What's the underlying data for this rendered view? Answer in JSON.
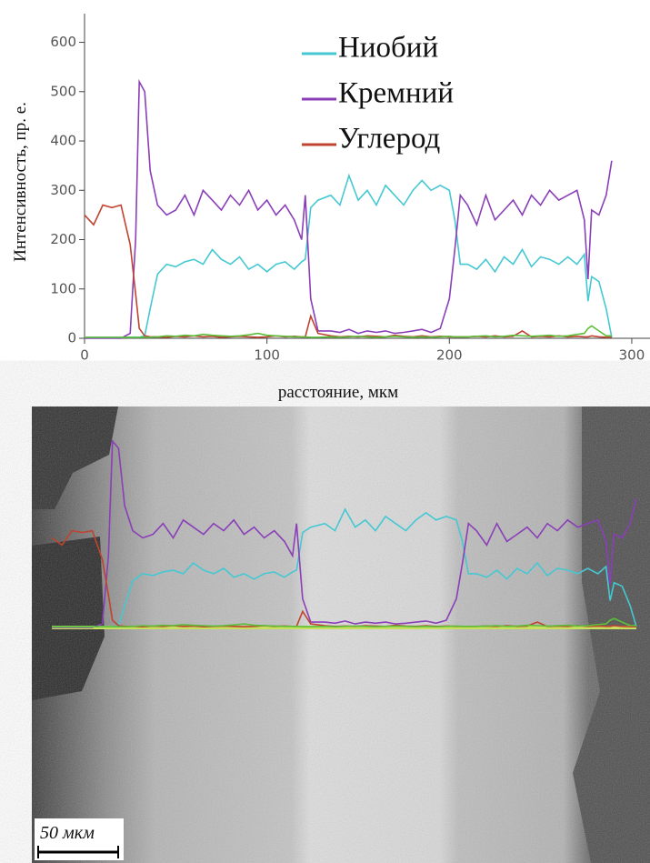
{
  "chart_data": {
    "type": "line",
    "x_label": "расстояние, мкм",
    "y_label": "Интенсивность, пр. е.",
    "xlim": [
      0,
      310
    ],
    "xticks": [
      0,
      100,
      200,
      300
    ],
    "ylim": [
      0,
      660
    ],
    "yticks": [
      0,
      100,
      200,
      300,
      400,
      500,
      600
    ],
    "legend": "upper center",
    "x": [
      0,
      5,
      10,
      15,
      20,
      25,
      28,
      30,
      33,
      36,
      40,
      45,
      50,
      55,
      60,
      65,
      70,
      75,
      80,
      85,
      90,
      95,
      100,
      105,
      110,
      115,
      119,
      121,
      124,
      128,
      135,
      140,
      145,
      150,
      155,
      160,
      165,
      170,
      175,
      180,
      185,
      190,
      195,
      200,
      203,
      206,
      210,
      215,
      220,
      225,
      230,
      235,
      240,
      245,
      250,
      255,
      260,
      265,
      270,
      274,
      276,
      278,
      282,
      286,
      289
    ],
    "series": [
      {
        "name": "Ниобий",
        "color": "#45c8d2",
        "values": [
          2,
          2,
          2,
          2,
          2,
          2,
          2,
          2,
          5,
          60,
          130,
          150,
          145,
          155,
          160,
          150,
          180,
          160,
          150,
          165,
          140,
          150,
          135,
          150,
          155,
          140,
          155,
          160,
          265,
          280,
          290,
          270,
          330,
          280,
          300,
          270,
          310,
          290,
          270,
          300,
          320,
          300,
          310,
          300,
          240,
          150,
          150,
          140,
          160,
          135,
          165,
          150,
          180,
          145,
          165,
          160,
          150,
          165,
          150,
          170,
          75,
          125,
          115,
          60,
          2
        ]
      },
      {
        "name": "Кремний",
        "color": "#8a3fb8",
        "values": [
          0,
          0,
          0,
          0,
          0,
          10,
          200,
          520,
          500,
          340,
          270,
          250,
          260,
          290,
          250,
          300,
          280,
          260,
          290,
          270,
          300,
          260,
          280,
          250,
          270,
          240,
          200,
          290,
          80,
          15,
          15,
          12,
          18,
          10,
          15,
          12,
          15,
          10,
          12,
          15,
          18,
          12,
          20,
          80,
          180,
          290,
          270,
          230,
          290,
          240,
          260,
          280,
          250,
          290,
          270,
          300,
          280,
          290,
          300,
          240,
          120,
          260,
          250,
          290,
          360
        ]
      },
      {
        "name": "Углерод",
        "color": "#c0432f",
        "values": [
          250,
          230,
          270,
          265,
          270,
          190,
          90,
          20,
          5,
          3,
          3,
          2,
          4,
          3,
          5,
          3,
          4,
          2,
          3,
          4,
          3,
          2,
          3,
          5,
          3,
          4,
          3,
          3,
          45,
          10,
          5,
          3,
          4,
          3,
          5,
          4,
          3,
          6,
          4,
          3,
          5,
          3,
          4,
          3,
          3,
          3,
          3,
          4,
          3,
          5,
          3,
          4,
          15,
          3,
          4,
          3,
          5,
          3,
          4,
          3,
          3,
          5,
          3,
          2,
          2
        ]
      },
      {
        "color": "#5cbf3a",
        "values": [
          2,
          2,
          2,
          2,
          2,
          2,
          2,
          2,
          2,
          2,
          3,
          5,
          4,
          6,
          5,
          8,
          6,
          5,
          4,
          5,
          7,
          10,
          6,
          5,
          4,
          3,
          3,
          3,
          2,
          2,
          3,
          2,
          3,
          4,
          3,
          2,
          3,
          4,
          3,
          2,
          3,
          2,
          3,
          4,
          3,
          3,
          3,
          4,
          5,
          3,
          4,
          6,
          5,
          4,
          5,
          6,
          4,
          5,
          8,
          10,
          20,
          25,
          15,
          5,
          5
        ]
      }
    ]
  },
  "image": {
    "scale_bar": "50 мкм"
  }
}
